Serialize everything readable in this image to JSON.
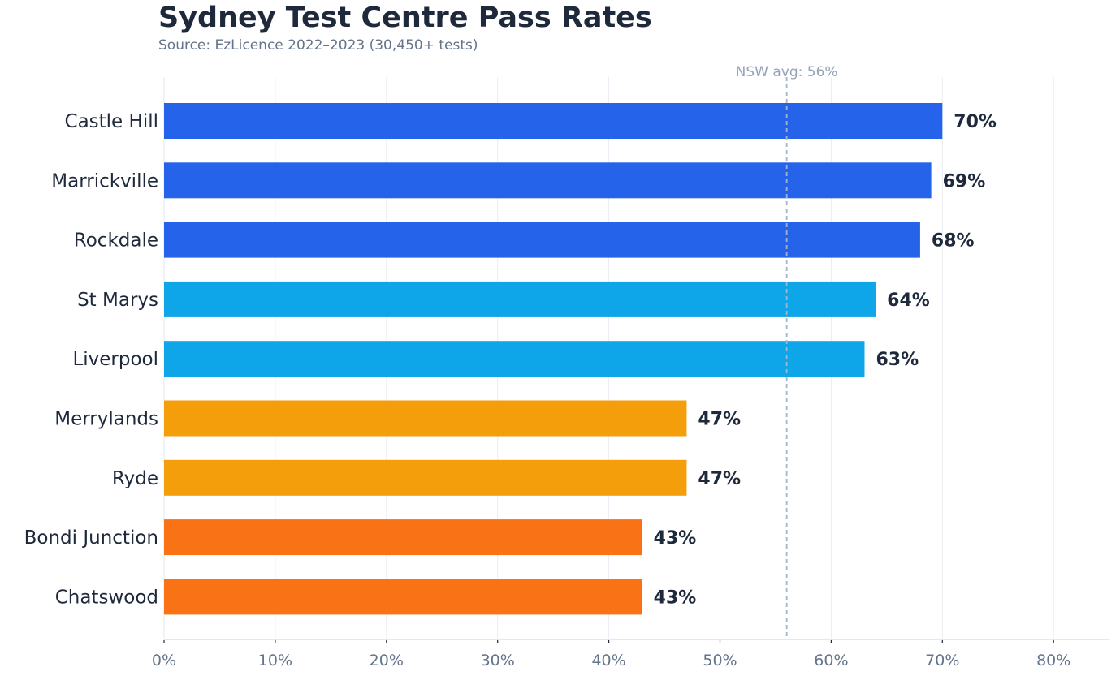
{
  "chart_data": {
    "type": "bar",
    "orientation": "horizontal",
    "title": "Sydney Test Centre Pass Rates",
    "subtitle": "Source: EzLicence 2022–2023 (30,450+ tests)",
    "xlabel": "",
    "ylabel": "",
    "xlim": [
      0,
      85
    ],
    "x_ticks": [
      0,
      10,
      20,
      30,
      40,
      50,
      60,
      70,
      80
    ],
    "x_tick_labels": [
      "0%",
      "10%",
      "20%",
      "30%",
      "40%",
      "50%",
      "60%",
      "70%",
      "80%"
    ],
    "grid": "vertical",
    "categories": [
      "Castle Hill",
      "Marrickville",
      "Rockdale",
      "St Marys",
      "Liverpool",
      "Merrylands",
      "Ryde",
      "Bondi Junction",
      "Chatswood"
    ],
    "values": [
      70,
      69,
      68,
      64,
      63,
      47,
      47,
      43,
      43
    ],
    "data_labels": [
      "70%",
      "69%",
      "68%",
      "64%",
      "63%",
      "47%",
      "47%",
      "43%",
      "43%"
    ],
    "bar_colors": [
      "#2563eb",
      "#2563eb",
      "#2563eb",
      "#0ea5e9",
      "#0ea5e9",
      "#f59e0b",
      "#f59e0b",
      "#f97316",
      "#f97316"
    ],
    "reference_line": {
      "value": 56,
      "label": "NSW avg: 56%",
      "color": "#94a3b8",
      "style": "dashed"
    }
  }
}
